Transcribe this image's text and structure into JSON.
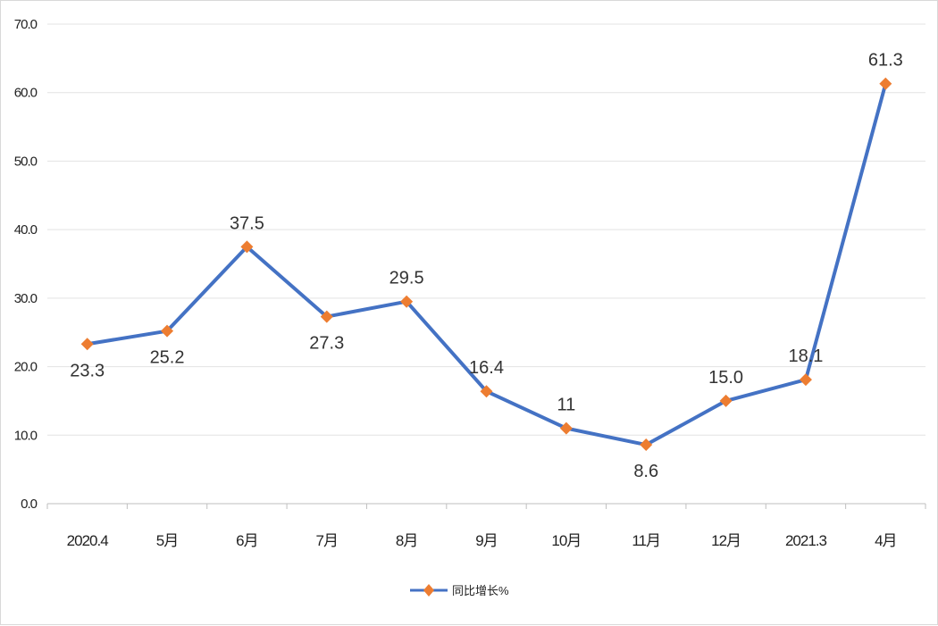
{
  "chart_data": {
    "type": "line",
    "categories": [
      "2020.4",
      "5月",
      "6月",
      "7月",
      "8月",
      "9月",
      "10月",
      "11月",
      "12月",
      "2021.3",
      "4月"
    ],
    "series": [
      {
        "name": "同比增长%",
        "values": [
          23.3,
          25.2,
          37.5,
          27.3,
          29.5,
          16.4,
          11,
          8.6,
          15.0,
          18.1,
          61.3
        ],
        "labels": [
          "23.3",
          "25.2",
          "37.5",
          "27.3",
          "29.5",
          "16.4",
          "11",
          "8.6",
          "15.0",
          "18.1",
          "61.3"
        ],
        "label_positions": [
          "below",
          "below",
          "above",
          "below",
          "above",
          "above",
          "above",
          "below",
          "above",
          "above",
          "above"
        ],
        "line_color": "#4472c4",
        "marker_color": "#ed7d31",
        "marker": "diamond"
      }
    ],
    "title": "",
    "xlabel": "",
    "ylabel": "",
    "ylim": [
      0,
      70
    ],
    "yticks": [
      0,
      10,
      20,
      30,
      40,
      50,
      60,
      70
    ],
    "ytick_labels": [
      "0.0",
      "10.0",
      "20.0",
      "30.0",
      "40.0",
      "50.0",
      "60.0",
      "70.0"
    ],
    "grid": true,
    "legend_position": "bottom-center"
  }
}
